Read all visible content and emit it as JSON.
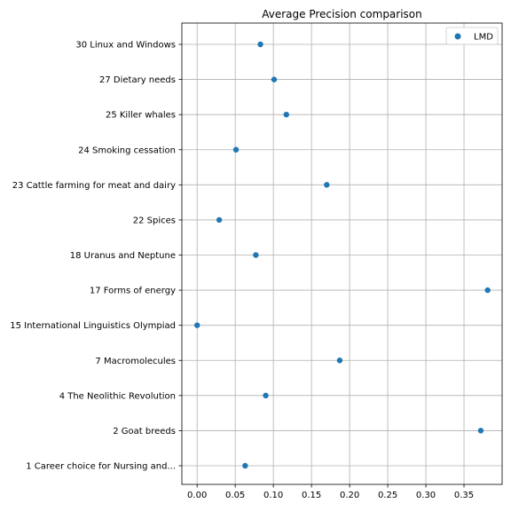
{
  "chart_data": {
    "type": "scatter",
    "title": "Average Precision comparison",
    "xlabel": "",
    "ylabel": "",
    "xlim": [
      -0.02,
      0.4
    ],
    "xticks": [
      0.0,
      0.05,
      0.1,
      0.15,
      0.2,
      0.25,
      0.3,
      0.35
    ],
    "xtick_labels": [
      "0.00",
      "0.05",
      "0.10",
      "0.15",
      "0.20",
      "0.25",
      "0.30",
      "0.35"
    ],
    "grid": true,
    "legend_position": "top-right",
    "categories": [
      "1 Career choice for Nursing and...",
      "2 Goat breeds",
      "4 The Neolithic Revolution",
      "7 Macromolecules",
      "15 International Linguistics Olympiad",
      "17 Forms of energy",
      "18 Uranus and Neptune",
      "22 Spices",
      "23 Cattle farming for meat and dairy",
      "24 Smoking cessation",
      "25 Killer whales",
      "27 Dietary needs",
      "30 Linux and Windows"
    ],
    "series": [
      {
        "name": "LMD",
        "color": "#1f77b4",
        "values": [
          0.063,
          0.372,
          0.09,
          0.187,
          0.0,
          0.381,
          0.077,
          0.029,
          0.17,
          0.051,
          0.117,
          0.101,
          0.083
        ]
      }
    ]
  }
}
